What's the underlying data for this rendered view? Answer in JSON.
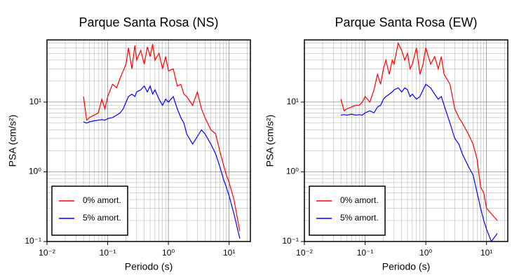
{
  "chart_data": [
    {
      "type": "line",
      "title": "Parque Santa Rosa (NS)",
      "x_label": "Periodo (s)",
      "y_label": "PSA (cm/s²)",
      "xscale": "log",
      "yscale": "log",
      "grid": true,
      "minor_grid": true,
      "legend": "lower left",
      "xlim": [
        0.01,
        22.4
      ],
      "ylim": [
        0.1,
        78
      ],
      "xticks": [
        {
          "value": 0.01,
          "label": "10⁻²"
        },
        {
          "value": 0.1,
          "label": "10⁻¹"
        },
        {
          "value": 1,
          "label": "10⁰"
        },
        {
          "value": 10,
          "label": "10¹"
        }
      ],
      "yticks": [
        {
          "value": 0.1,
          "label": "10⁻¹"
        },
        {
          "value": 1,
          "label": "10⁰"
        },
        {
          "value": 10,
          "label": "10¹"
        }
      ],
      "x": [
        0.04,
        0.045,
        0.05,
        0.06,
        0.07,
        0.08,
        0.09,
        0.1,
        0.12,
        0.14,
        0.16,
        0.18,
        0.2,
        0.22,
        0.25,
        0.28,
        0.3,
        0.35,
        0.4,
        0.45,
        0.5,
        0.55,
        0.6,
        0.7,
        0.8,
        0.9,
        1.0,
        1.2,
        1.4,
        1.6,
        1.8,
        2.0,
        2.5,
        3.0,
        3.5,
        4.0,
        5.0,
        6.0,
        7.0,
        8.0,
        9.0,
        10,
        12,
        15
      ],
      "series": [
        {
          "name": "0% amort.",
          "color": "#ff0000",
          "values": [
            12,
            5.5,
            6,
            6.5,
            7,
            11,
            8,
            12,
            18,
            16,
            22,
            28,
            35,
            60,
            30,
            65,
            40,
            55,
            35,
            62,
            45,
            68,
            40,
            50,
            30,
            45,
            28,
            30,
            17,
            18,
            13,
            12,
            9,
            14,
            8,
            6,
            4,
            3.5,
            2,
            1.3,
            0.9,
            0.7,
            0.4,
            0.14
          ]
        },
        {
          "name": "5% amort.",
          "color": "#0000ff",
          "values": [
            5.2,
            5,
            5.2,
            5.4,
            5.5,
            5.6,
            5.5,
            5.8,
            6,
            6.5,
            7,
            8,
            10,
            12,
            13,
            12,
            14,
            15,
            17,
            14,
            17,
            13,
            15,
            11,
            9,
            11,
            10,
            12,
            8,
            6,
            5,
            3.5,
            2.5,
            3.2,
            4,
            3.5,
            2.5,
            1.8,
            1.2,
            0.8,
            0.6,
            0.45,
            0.25,
            0.11
          ]
        }
      ]
    },
    {
      "type": "line",
      "title": "Parque Santa Rosa (EW)",
      "x_label": "Periodo (s)",
      "y_label": "PSA (cm/s²)",
      "xscale": "log",
      "yscale": "log",
      "grid": true,
      "minor_grid": true,
      "legend": "lower left",
      "xlim": [
        0.01,
        22.4
      ],
      "ylim": [
        0.1,
        78
      ],
      "xticks": [
        {
          "value": 0.01,
          "label": "10⁻²"
        },
        {
          "value": 0.1,
          "label": "10⁻¹"
        },
        {
          "value": 1,
          "label": "10⁰"
        },
        {
          "value": 10,
          "label": "10¹"
        }
      ],
      "yticks": [
        {
          "value": 0.1,
          "label": "10⁻¹"
        },
        {
          "value": 1,
          "label": "10⁰"
        },
        {
          "value": 10,
          "label": "10¹"
        }
      ],
      "x": [
        0.04,
        0.045,
        0.05,
        0.06,
        0.07,
        0.08,
        0.09,
        0.1,
        0.12,
        0.14,
        0.16,
        0.18,
        0.2,
        0.22,
        0.25,
        0.28,
        0.3,
        0.35,
        0.4,
        0.45,
        0.5,
        0.55,
        0.6,
        0.7,
        0.8,
        0.9,
        1.0,
        1.2,
        1.4,
        1.6,
        1.8,
        2.0,
        2.5,
        3.0,
        3.5,
        4.0,
        5.0,
        6.0,
        7.0,
        8.0,
        9.0,
        10,
        12,
        15
      ],
      "series": [
        {
          "name": "0% amort.",
          "color": "#ff0000",
          "values": [
            11,
            7.5,
            8,
            8.5,
            9,
            9,
            10,
            12,
            10,
            15,
            25,
            18,
            30,
            40,
            25,
            40,
            35,
            70,
            55,
            40,
            50,
            30,
            35,
            60,
            25,
            35,
            60,
            35,
            45,
            30,
            45,
            25,
            18,
            8,
            6,
            5,
            3.5,
            2.5,
            1.5,
            0.6,
            0.5,
            0.3,
            0.25,
            0.2
          ]
        },
        {
          "name": "5% amort.",
          "color": "#0000ff",
          "values": [
            6.5,
            6.6,
            6.5,
            6.7,
            6.5,
            6.6,
            6.5,
            7,
            7.5,
            7,
            8.5,
            9,
            11,
            12,
            13,
            14,
            15,
            16,
            14,
            16,
            15,
            12,
            13,
            11,
            12,
            15,
            18,
            16,
            13,
            11,
            12,
            9,
            5,
            3,
            2.5,
            1.8,
            1.2,
            0.9,
            0.5,
            0.3,
            0.2,
            0.15,
            0.1,
            0.13
          ]
        }
      ]
    }
  ]
}
